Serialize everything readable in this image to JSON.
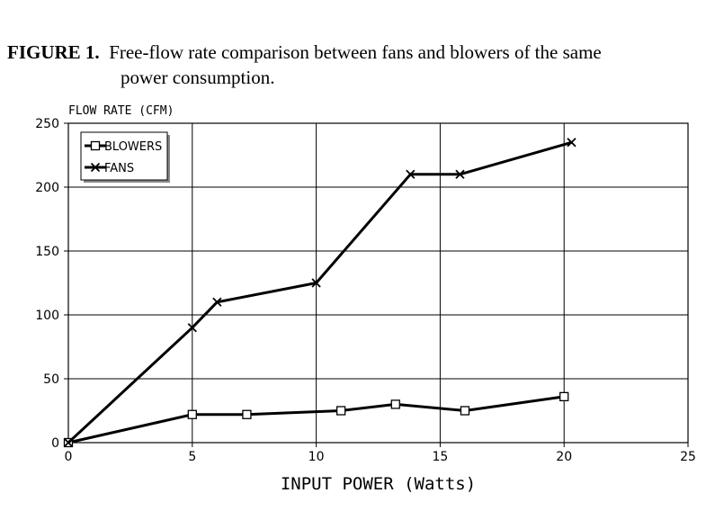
{
  "caption": {
    "label": "FIGURE 1.",
    "line1": "Free-flow rate comparison between fans and blowers of the same",
    "line2": "power consumption."
  },
  "chart_data": {
    "type": "line",
    "ylabel": "FLOW RATE (CFM)",
    "xlabel": "INPUT POWER (Watts)",
    "xlim": [
      0,
      25
    ],
    "ylim": [
      0,
      250
    ],
    "x_ticks": [
      0,
      5,
      10,
      15,
      20,
      25
    ],
    "y_ticks": [
      0,
      50,
      100,
      150,
      200,
      250
    ],
    "grid": true,
    "legend_position": "top-left",
    "series": [
      {
        "name": "BLOWERS",
        "marker": "square",
        "points": [
          [
            0,
            0
          ],
          [
            5,
            22
          ],
          [
            7.2,
            22
          ],
          [
            11,
            25
          ],
          [
            13.2,
            30
          ],
          [
            16,
            25
          ],
          [
            20,
            36
          ]
        ]
      },
      {
        "name": "FANS",
        "marker": "x",
        "points": [
          [
            0,
            0
          ],
          [
            5,
            90
          ],
          [
            6,
            110
          ],
          [
            10,
            125
          ],
          [
            13.8,
            210
          ],
          [
            15.8,
            210
          ],
          [
            20.3,
            235
          ]
        ]
      }
    ],
    "colors": {
      "line": "#000000",
      "grid": "#000000"
    }
  }
}
